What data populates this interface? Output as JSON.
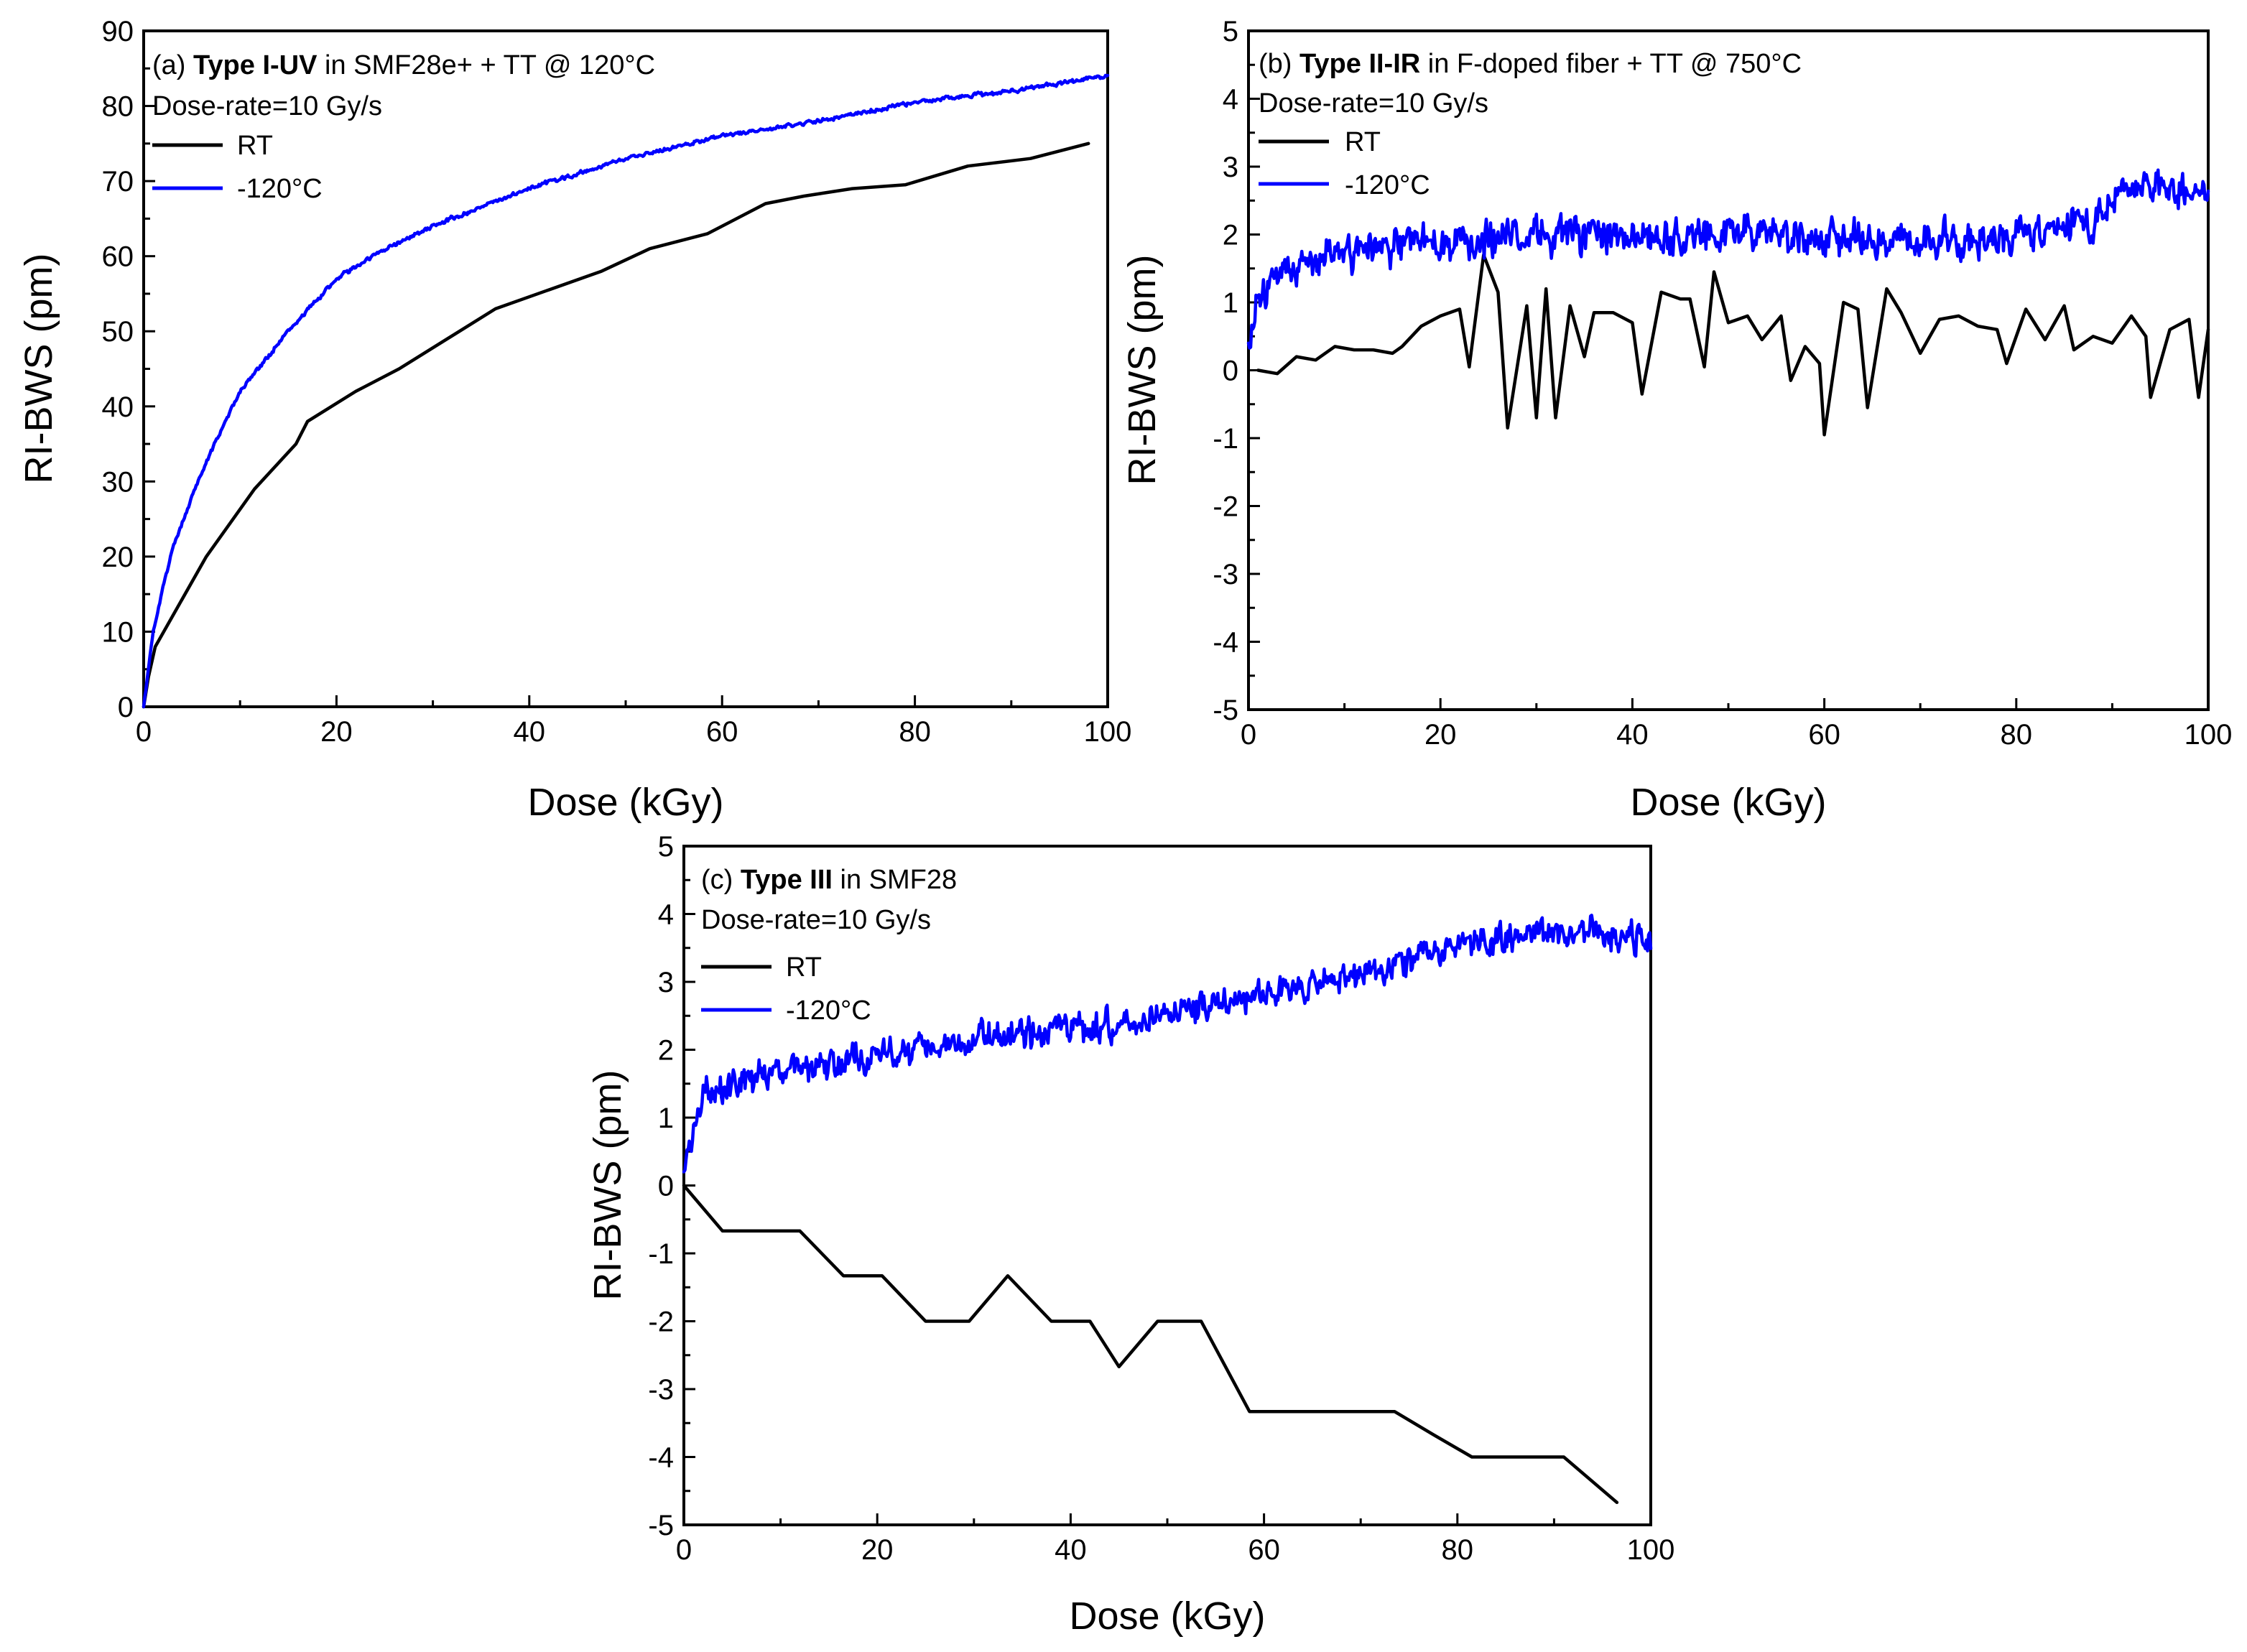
{
  "chart_data": [
    {
      "id": "a",
      "type": "line",
      "panel_label": "(a)",
      "title_bold": "Type I-UV",
      "title_rest": "in SMF28e+ + TT @ 120°C",
      "subtitle": "Dose-rate=10 Gy/s",
      "xlabel": "Dose (kGy)",
      "ylabel": "RI-BWS (pm)",
      "xlim": [
        0,
        100
      ],
      "ylim": [
        0,
        90
      ],
      "xticks": [
        0,
        20,
        40,
        60,
        80,
        100
      ],
      "yticks": [
        0,
        10,
        20,
        30,
        40,
        50,
        60,
        70,
        80,
        90
      ],
      "legend_position": "top-left",
      "series": [
        {
          "name": "RT",
          "color": "#000000",
          "noisy": false,
          "x": [
            0,
            0.5,
            1.2,
            6.5,
            11.5,
            15.8,
            17,
            22,
            26.5,
            31.5,
            36.5,
            42,
            47.5,
            52.5,
            58.5,
            64.5,
            68.5,
            73.5,
            79,
            85.5,
            92,
            98
          ],
          "y": [
            0,
            4,
            8,
            20,
            29,
            35,
            38,
            42,
            45,
            49,
            53,
            55.5,
            58,
            61,
            63,
            67,
            68,
            69,
            69.5,
            72,
            73,
            75
          ]
        },
        {
          "name": "-120°C",
          "color": "#0000ff",
          "noisy": true,
          "noise_amplitude": 0.35,
          "x": [
            0,
            1,
            2,
            3,
            5,
            7,
            10,
            15,
            20,
            25,
            30,
            40,
            50,
            60,
            70,
            80,
            90,
            100
          ],
          "y": [
            0,
            10,
            16,
            21,
            28,
            34,
            42,
            50,
            57,
            61,
            64,
            69,
            73,
            76,
            78,
            80.5,
            82,
            84
          ]
        }
      ]
    },
    {
      "id": "b",
      "type": "line",
      "panel_label": "(b)",
      "title_bold": "Type II-IR",
      "title_rest": "in F-doped fiber + TT @ 750°C",
      "subtitle": "Dose-rate=10 Gy/s",
      "xlabel": "Dose (kGy)",
      "ylabel": "RI-BWS (pm)",
      "xlim": [
        0,
        100
      ],
      "ylim": [
        -5,
        5
      ],
      "xticks": [
        0,
        20,
        40,
        60,
        80,
        100
      ],
      "yticks": [
        -5,
        -4,
        -3,
        -2,
        -1,
        0,
        1,
        2,
        3,
        4,
        5
      ],
      "legend_position": "top-left",
      "series": [
        {
          "name": "RT",
          "color": "#000000",
          "noisy": false,
          "x": [
            1,
            3,
            5,
            7,
            9,
            11,
            13,
            15,
            16,
            18,
            20,
            22,
            23,
            24.5,
            26,
            27,
            29,
            30,
            31,
            32,
            33.5,
            35,
            36,
            38,
            40,
            41,
            43,
            45,
            46,
            47.5,
            48.5,
            50,
            52,
            53.5,
            55.5,
            56.5,
            58,
            59.5,
            60,
            62,
            63.5,
            64.5,
            66.5,
            68,
            70,
            72,
            74,
            76,
            78,
            79,
            81,
            83,
            85,
            86,
            88,
            90,
            92,
            93.5,
            94,
            96,
            98,
            99,
            100
          ],
          "y": [
            0,
            -0.05,
            0.2,
            0.15,
            0.35,
            0.3,
            0.3,
            0.25,
            0.35,
            0.65,
            0.8,
            0.9,
            0.05,
            1.7,
            1.15,
            -0.85,
            0.95,
            -0.7,
            1.2,
            -0.7,
            0.95,
            0.2,
            0.85,
            0.85,
            0.7,
            -0.35,
            1.15,
            1.05,
            1.05,
            0.05,
            1.45,
            0.7,
            0.8,
            0.45,
            0.8,
            -0.15,
            0.35,
            0.1,
            -0.95,
            1.0,
            0.9,
            -0.55,
            1.2,
            0.85,
            0.25,
            0.75,
            0.8,
            0.65,
            0.6,
            0.1,
            0.9,
            0.45,
            0.95,
            0.3,
            0.5,
            0.4,
            0.8,
            0.5,
            -0.4,
            0.6,
            0.75,
            -0.4,
            0.6
          ]
        },
        {
          "name": "-120°C",
          "color": "#0000ff",
          "noisy": true,
          "noise_amplitude": 0.35,
          "x": [
            0,
            1,
            2,
            4,
            6,
            10,
            15,
            20,
            30,
            40,
            50,
            60,
            70,
            80,
            88,
            90,
            95,
            100
          ],
          "y": [
            0.4,
            1.0,
            1.2,
            1.4,
            1.5,
            1.7,
            1.8,
            1.9,
            2.0,
            1.95,
            2.0,
            1.95,
            1.9,
            1.95,
            2.2,
            2.6,
            2.75,
            2.6
          ]
        }
      ]
    },
    {
      "id": "c",
      "type": "line",
      "panel_label": "(c)",
      "title_bold": "Type III",
      "title_rest": "in SMF28",
      "subtitle": "Dose-rate=10 Gy/s",
      "xlabel": "Dose (kGy)",
      "ylabel": "RI-BWS (pm)",
      "xlim": [
        0,
        100
      ],
      "ylim": [
        -5,
        5
      ],
      "xticks": [
        0,
        20,
        40,
        60,
        80,
        100
      ],
      "yticks": [
        -5,
        -4,
        -3,
        -2,
        -1,
        0,
        1,
        2,
        3,
        4,
        5
      ],
      "legend_position": "top-left",
      "series": [
        {
          "name": "RT",
          "color": "#000000",
          "noisy": false,
          "x": [
            0,
            4,
            8,
            12,
            16.5,
            20.5,
            25,
            29.5,
            33.5,
            38,
            42,
            45,
            49,
            53.5,
            58.5,
            63.5,
            68.5,
            73.5,
            77.5,
            81.5,
            86,
            91,
            96.5
          ],
          "y": [
            0,
            -0.67,
            -0.67,
            -0.67,
            -1.33,
            -1.33,
            -2.0,
            -2.0,
            -1.33,
            -2.0,
            -2.0,
            -2.67,
            -2.0,
            -2.0,
            -3.33,
            -3.33,
            -3.33,
            -3.33,
            -3.67,
            -4.0,
            -4.0,
            -4.0,
            -4.67
          ]
        },
        {
          "name": "-120°C",
          "color": "#0000ff",
          "noisy": true,
          "noise_amplitude": 0.3,
          "x": [
            0,
            1,
            2,
            4,
            8,
            12,
            16,
            20,
            25,
            30,
            35,
            40,
            45,
            50,
            55,
            60,
            65,
            70,
            75,
            80,
            85,
            90,
            95,
            100
          ],
          "y": [
            0.2,
            0.9,
            1.3,
            1.5,
            1.6,
            1.8,
            1.75,
            1.9,
            2.0,
            2.15,
            2.25,
            2.3,
            2.35,
            2.5,
            2.7,
            2.85,
            2.95,
            3.1,
            3.3,
            3.55,
            3.65,
            3.75,
            3.75,
            3.6
          ]
        }
      ]
    }
  ]
}
